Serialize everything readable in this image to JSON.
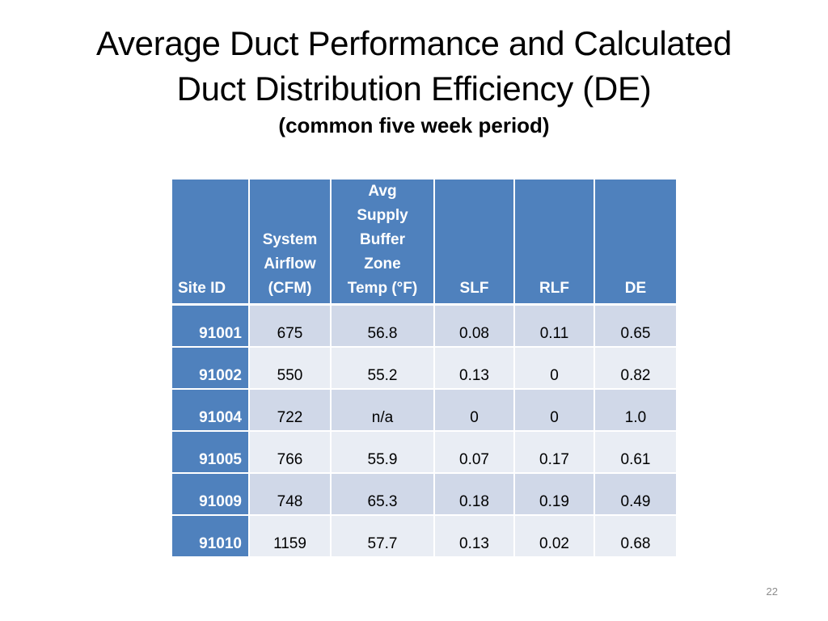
{
  "slide": {
    "title_line1": "Average Duct Performance and Calculated",
    "title_line2": "Duct Distribution Efficiency (DE)",
    "subtitle": "(common five week period)",
    "page_number": "22"
  },
  "table": {
    "headers": {
      "site_id": "Site ID",
      "system_airflow": [
        "System",
        "Airflow",
        "(CFM)"
      ],
      "buffer_temp": [
        "Avg",
        "Supply",
        "Buffer",
        "Zone",
        "Temp (°F)"
      ],
      "slf": "SLF",
      "rlf": "RLF",
      "de": "DE"
    },
    "rows": [
      {
        "site": "91001",
        "airflow": "675",
        "temp": "56.8",
        "slf": "0.08",
        "rlf": "0.11",
        "de": "0.65"
      },
      {
        "site": "91002",
        "airflow": "550",
        "temp": "55.2",
        "slf": "0.13",
        "rlf": "0",
        "de": "0.82"
      },
      {
        "site": "91004",
        "airflow": "722",
        "temp": "n/a",
        "slf": "0",
        "rlf": "0",
        "de": "1.0"
      },
      {
        "site": "91005",
        "airflow": "766",
        "temp": "55.9",
        "slf": "0.07",
        "rlf": "0.17",
        "de": "0.61"
      },
      {
        "site": "91009",
        "airflow": "748",
        "temp": "65.3",
        "slf": "0.18",
        "rlf": "0.19",
        "de": "0.49"
      },
      {
        "site": "91010",
        "airflow": "1159",
        "temp": "57.7",
        "slf": "0.13",
        "rlf": "0.02",
        "de": "0.68"
      }
    ]
  },
  "colors": {
    "header_blue": "#4f81bd",
    "row_band_dark": "#d0d8e8",
    "row_band_light": "#e9edf4"
  }
}
